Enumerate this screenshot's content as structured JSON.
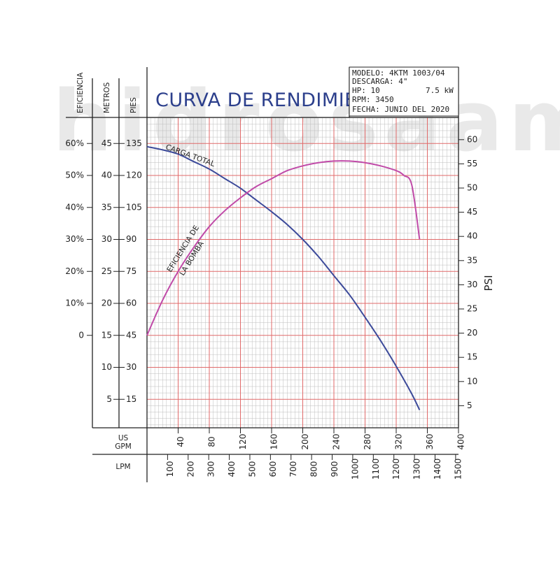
{
  "watermark": "hidrosaam",
  "chart_data": {
    "type": "line",
    "title": "CURVA DE RENDIMIENTO",
    "info": {
      "modelo": "MODELO: 4KTM 1003/04",
      "descarga": "DESCARGA: 4\"",
      "hp": "HP: 10",
      "kw": "7.5 kW",
      "rpm": "RPM: 3450",
      "fecha": "FECHA: JUNIO DEL 2020"
    },
    "axes": {
      "eficiencia": {
        "label": "EFICIENCIA",
        "ticks": [
          "60%",
          "50%",
          "40%",
          "30%",
          "20%",
          "10%",
          "0"
        ],
        "values": [
          60,
          50,
          40,
          30,
          20,
          10,
          0
        ]
      },
      "metros": {
        "label": "METROS",
        "ticks": [
          "45",
          "40",
          "35",
          "30",
          "25",
          "20",
          "15",
          "10",
          "5"
        ],
        "values": [
          45,
          40,
          35,
          30,
          25,
          20,
          15,
          10,
          5
        ]
      },
      "pies": {
        "label": "PIES",
        "ticks": [
          "135",
          "120",
          "105",
          "90",
          "75",
          "60",
          "45",
          "30",
          "15"
        ],
        "values": [
          135,
          120,
          105,
          90,
          75,
          60,
          45,
          30,
          15
        ]
      },
      "psi": {
        "label": "PSI",
        "ticks": [
          "60",
          "55",
          "50",
          "45",
          "40",
          "35",
          "30",
          "25",
          "20",
          "15",
          "10",
          "5"
        ],
        "values": [
          60,
          55,
          50,
          45,
          40,
          35,
          30,
          25,
          20,
          15,
          10,
          5
        ]
      },
      "gpm": {
        "label_line1": "US",
        "label_line2": "GPM",
        "ticks": [
          "40",
          "80",
          "120",
          "160",
          "200",
          "240",
          "280",
          "320",
          "360",
          "400"
        ],
        "values": [
          40,
          80,
          120,
          160,
          200,
          240,
          280,
          320,
          360,
          400
        ]
      },
      "lpm": {
        "label": "LPM",
        "ticks": [
          "100",
          "200",
          "300",
          "400",
          "500",
          "600",
          "700",
          "800",
          "900",
          "1000",
          "1100",
          "1200",
          "1300",
          "1400",
          "1500"
        ],
        "values": [
          100,
          200,
          300,
          400,
          500,
          600,
          700,
          800,
          900,
          1000,
          1100,
          1200,
          1300,
          1400,
          1500
        ]
      },
      "x_range_gpm": [
        0,
        400
      ],
      "y_range_pies": [
        0,
        150
      ]
    },
    "series": [
      {
        "name": "CARGA TOTAL",
        "y_unit": "PIES",
        "x_gpm": [
          0,
          20,
          40,
          60,
          80,
          100,
          120,
          140,
          160,
          180,
          200,
          220,
          240,
          260,
          280,
          300,
          320,
          340,
          350
        ],
        "y": [
          133.5,
          132,
          130,
          126.5,
          123,
          118.5,
          114,
          108.5,
          103,
          97,
          90,
          82,
          73,
          64,
          53.5,
          42.5,
          30.5,
          17.5,
          10
        ]
      },
      {
        "name": "EFICIENCIA DE LA BOMBA",
        "y_unit": "%",
        "x_gpm": [
          0,
          20,
          40,
          60,
          80,
          100,
          120,
          140,
          160,
          180,
          200,
          220,
          240,
          260,
          280,
          300,
          320,
          330,
          340,
          350
        ],
        "y": [
          0,
          11,
          20,
          27.5,
          34,
          39,
          43,
          46.5,
          49,
          51.5,
          53,
          54,
          54.5,
          54.5,
          54,
          53,
          51.5,
          50,
          47,
          30
        ]
      }
    ],
    "grid": true,
    "colors": {
      "carga": "#3c4a9a",
      "eficiencia": "#c04aa8",
      "grid_major": "#e06a6a",
      "grid_minor": "#bdbdbd"
    }
  }
}
